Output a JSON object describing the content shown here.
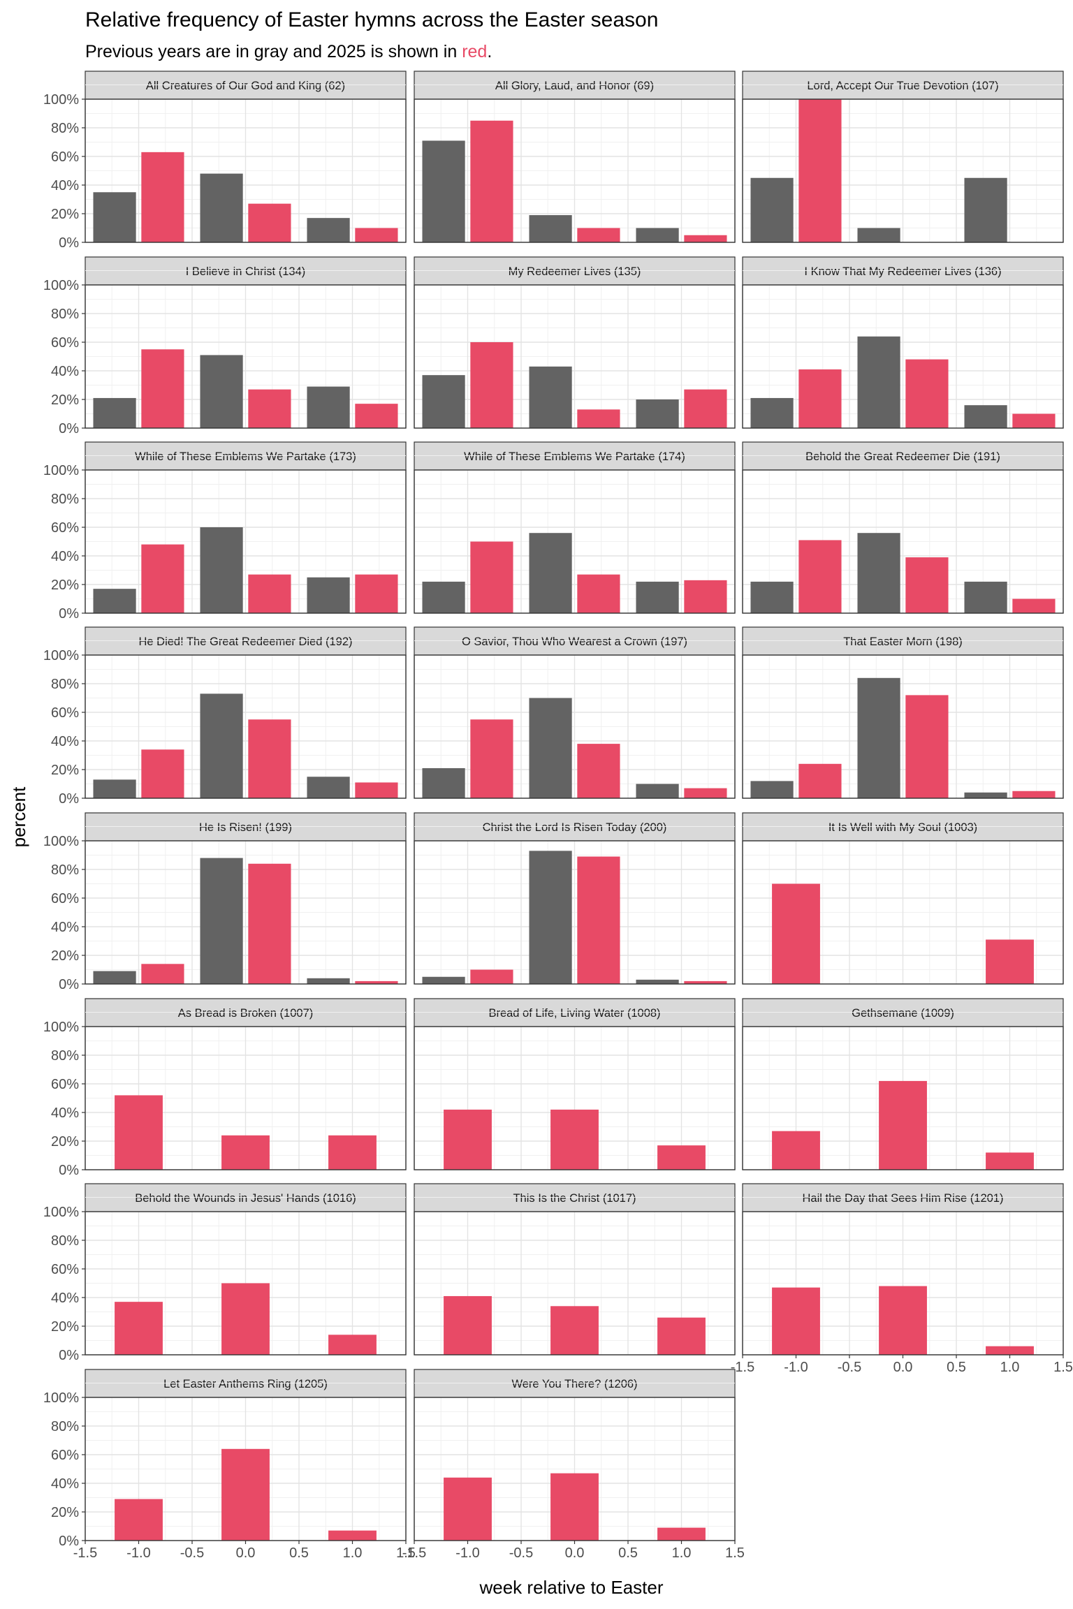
{
  "chart_data": {
    "type": "bar",
    "title": "Relative frequency of Easter hymns across the Easter season",
    "subtitle": {
      "prefix": "Previous years are in gray and 2025 is shown in ",
      "highlight": "red",
      "suffix": "."
    },
    "xlabel": "week relative to Easter",
    "ylabel": "percent",
    "xlim": [
      -1.5,
      1.5
    ],
    "ylim": [
      0,
      100
    ],
    "x_ticks": [
      "-1.5",
      "-1.0",
      "-0.5",
      "0.0",
      "0.5",
      "1.0",
      "1.5"
    ],
    "y_ticks": [
      "0%",
      "20%",
      "40%",
      "60%",
      "80%",
      "100%"
    ],
    "grid": true,
    "layout": "facet grid, 3 columns",
    "colors": {
      "previous": "#636363",
      "2025": "#e84a66",
      "strip_bg": "#d9d9d9"
    },
    "series_keys": [
      "previous",
      "2025"
    ],
    "weeks": [
      -1,
      0,
      1
    ],
    "panels": [
      {
        "title": "All Creatures of Our God and King (62)",
        "previous": [
          35,
          48,
          17
        ],
        "2025": [
          63,
          27,
          10
        ]
      },
      {
        "title": "All Glory, Laud, and Honor (69)",
        "previous": [
          71,
          19,
          10
        ],
        "2025": [
          85,
          10,
          5
        ]
      },
      {
        "title": "Lord, Accept Our True Devotion (107)",
        "previous": [
          45,
          10,
          45
        ],
        "2025": [
          100,
          null,
          null
        ]
      },
      {
        "title": "I Believe in Christ (134)",
        "previous": [
          21,
          51,
          29
        ],
        "2025": [
          55,
          27,
          17
        ]
      },
      {
        "title": "My Redeemer Lives (135)",
        "previous": [
          37,
          43,
          20
        ],
        "2025": [
          60,
          13,
          27
        ]
      },
      {
        "title": "I Know That My Redeemer Lives (136)",
        "previous": [
          21,
          64,
          16
        ],
        "2025": [
          41,
          48,
          10
        ]
      },
      {
        "title": "While of These Emblems We Partake (173)",
        "previous": [
          17,
          60,
          25
        ],
        "2025": [
          48,
          27,
          27
        ]
      },
      {
        "title": "While of These Emblems We Partake (174)",
        "previous": [
          22,
          56,
          22
        ],
        "2025": [
          50,
          27,
          23
        ]
      },
      {
        "title": "Behold the Great Redeemer Die (191)",
        "previous": [
          22,
          56,
          22
        ],
        "2025": [
          51,
          39,
          10
        ]
      },
      {
        "title": "He Died! The Great Redeemer Died (192)",
        "previous": [
          13,
          73,
          15
        ],
        "2025": [
          34,
          55,
          11
        ]
      },
      {
        "title": "O Savior, Thou Who Wearest a Crown (197)",
        "previous": [
          21,
          70,
          10
        ],
        "2025": [
          55,
          38,
          7
        ]
      },
      {
        "title": "That Easter Morn (198)",
        "previous": [
          12,
          84,
          4
        ],
        "2025": [
          24,
          72,
          5
        ]
      },
      {
        "title": "He Is Risen! (199)",
        "previous": [
          9,
          88,
          4
        ],
        "2025": [
          14,
          84,
          2
        ]
      },
      {
        "title": "Christ the Lord Is Risen Today (200)",
        "previous": [
          5,
          93,
          3
        ],
        "2025": [
          10,
          89,
          2
        ]
      },
      {
        "title": "It Is Well with My Soul (1003)",
        "previous": [
          null,
          null,
          null
        ],
        "2025": [
          70,
          null,
          31
        ]
      },
      {
        "title": "As Bread is Broken (1007)",
        "previous": [
          null,
          null,
          null
        ],
        "2025": [
          52,
          24,
          24
        ]
      },
      {
        "title": "Bread of Life, Living Water (1008)",
        "previous": [
          null,
          null,
          null
        ],
        "2025": [
          42,
          42,
          17
        ]
      },
      {
        "title": "Gethsemane (1009)",
        "previous": [
          null,
          null,
          null
        ],
        "2025": [
          27,
          62,
          12
        ]
      },
      {
        "title": "Behold the Wounds in Jesus' Hands (1016)",
        "previous": [
          null,
          null,
          null
        ],
        "2025": [
          37,
          50,
          14
        ]
      },
      {
        "title": "This Is the Christ (1017)",
        "previous": [
          null,
          null,
          null
        ],
        "2025": [
          41,
          34,
          26
        ]
      },
      {
        "title": "Hail the Day that Sees Him Rise (1201)",
        "previous": [
          null,
          null,
          null
        ],
        "2025": [
          47,
          48,
          6
        ]
      },
      {
        "title": "Let Easter Anthems Ring (1205)",
        "previous": [
          null,
          null,
          null
        ],
        "2025": [
          29,
          64,
          7
        ]
      },
      {
        "title": "Were You There? (1206)",
        "previous": [
          null,
          null,
          null
        ],
        "2025": [
          44,
          47,
          9
        ]
      }
    ]
  }
}
